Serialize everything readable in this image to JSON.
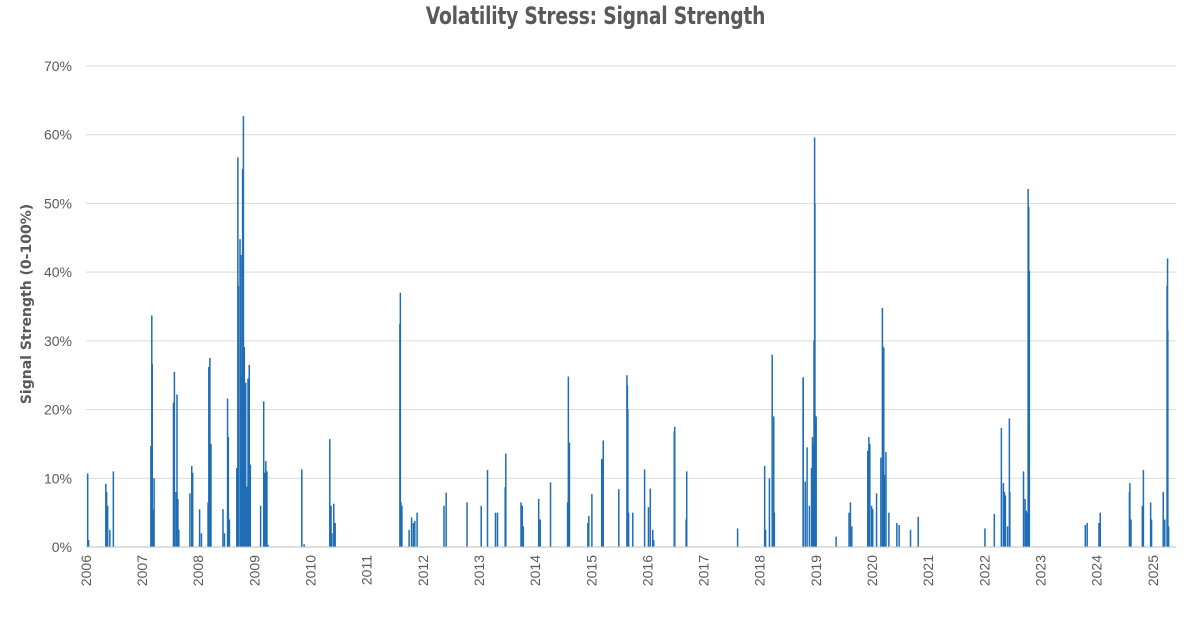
{
  "chart_data": {
    "type": "bar",
    "title": "Volatility Stress: Signal Strength",
    "ylabel": "Signal Strength (0-100%)",
    "xlabel": "",
    "ylim": [
      0,
      70
    ],
    "y_ticks": [
      "0%",
      "10%",
      "20%",
      "30%",
      "40%",
      "50%",
      "60%",
      "70%"
    ],
    "x_ticks": [
      "2006",
      "2007",
      "2008",
      "2009",
      "2010",
      "2011",
      "2012",
      "2013",
      "2014",
      "2015",
      "2016",
      "2017",
      "2018",
      "2019",
      "2020",
      "2021",
      "2022",
      "2023",
      "2024",
      "2025"
    ],
    "grid": true,
    "bar_color": "#1f6db5",
    "x_range": [
      "2006-01-01",
      "2025-06-01"
    ],
    "series": [
      {
        "points": [
          [
            "2006-01-12",
            10.7
          ],
          [
            "2006-01-18",
            1.0
          ],
          [
            "2006-05-10",
            9.2
          ],
          [
            "2006-05-15",
            8.0
          ],
          [
            "2006-05-22",
            6.0
          ],
          [
            "2006-06-05",
            2.5
          ],
          [
            "2006-06-28",
            11.0
          ],
          [
            "2007-02-27",
            14.7
          ],
          [
            "2007-03-05",
            33.7
          ],
          [
            "2007-03-08",
            26.6
          ],
          [
            "2007-03-13",
            5.4
          ],
          [
            "2007-03-20",
            10.0
          ],
          [
            "2007-07-24",
            21.0
          ],
          [
            "2007-07-30",
            25.5
          ],
          [
            "2007-08-09",
            8.0
          ],
          [
            "2007-08-16",
            22.2
          ],
          [
            "2007-08-22",
            7.0
          ],
          [
            "2007-08-28",
            2.5
          ],
          [
            "2007-11-08",
            7.8
          ],
          [
            "2007-11-20",
            11.8
          ],
          [
            "2007-11-26",
            10.8
          ],
          [
            "2008-01-10",
            5.5
          ],
          [
            "2008-01-22",
            2.0
          ],
          [
            "2008-03-05",
            6.5
          ],
          [
            "2008-03-10",
            26.2
          ],
          [
            "2008-03-17",
            27.5
          ],
          [
            "2008-03-24",
            15.0
          ],
          [
            "2008-06-10",
            5.5
          ],
          [
            "2008-06-20",
            2.0
          ],
          [
            "2008-07-10",
            21.6
          ],
          [
            "2008-07-15",
            16.0
          ],
          [
            "2008-07-22",
            4.0
          ],
          [
            "2008-09-08",
            11.5
          ],
          [
            "2008-09-15",
            56.7
          ],
          [
            "2008-09-18",
            38.0
          ],
          [
            "2008-09-29",
            44.8
          ],
          [
            "2008-10-06",
            42.5
          ],
          [
            "2008-10-10",
            25.0
          ],
          [
            "2008-10-16",
            55.0
          ],
          [
            "2008-10-21",
            62.7
          ],
          [
            "2008-10-27",
            29.1
          ],
          [
            "2008-11-05",
            23.9
          ],
          [
            "2008-11-12",
            8.8
          ],
          [
            "2008-11-20",
            24.5
          ],
          [
            "2008-11-28",
            26.5
          ],
          [
            "2008-12-05",
            12.0
          ],
          [
            "2009-02-10",
            6.0
          ],
          [
            "2009-03-02",
            21.2
          ],
          [
            "2009-03-09",
            10.8
          ],
          [
            "2009-03-16",
            12.5
          ],
          [
            "2009-03-23",
            11.0
          ],
          [
            "2009-03-30",
            0.3
          ],
          [
            "2009-11-05",
            11.3
          ],
          [
            "2009-11-20",
            0.4
          ],
          [
            "2010-05-06",
            15.7
          ],
          [
            "2010-05-14",
            6.0
          ],
          [
            "2010-05-20",
            2.0
          ],
          [
            "2010-06-01",
            6.3
          ],
          [
            "2010-06-10",
            3.5
          ],
          [
            "2011-08-05",
            32.5
          ],
          [
            "2011-08-08",
            37.0
          ],
          [
            "2011-08-12",
            6.5
          ],
          [
            "2011-08-18",
            6.0
          ],
          [
            "2011-10-04",
            2.5
          ],
          [
            "2011-10-20",
            4.3
          ],
          [
            "2011-11-01",
            3.5
          ],
          [
            "2011-11-10",
            3.8
          ],
          [
            "2011-11-25",
            5.0
          ],
          [
            "2012-05-18",
            6.0
          ],
          [
            "2012-06-01",
            7.9
          ],
          [
            "2012-10-15",
            6.5
          ],
          [
            "2013-01-15",
            6.0
          ],
          [
            "2013-02-25",
            11.2
          ],
          [
            "2013-04-18",
            5.0
          ],
          [
            "2013-05-01",
            5.0
          ],
          [
            "2013-06-20",
            8.7
          ],
          [
            "2013-06-24",
            13.6
          ],
          [
            "2013-10-01",
            6.5
          ],
          [
            "2013-10-09",
            6.0
          ],
          [
            "2013-10-16",
            3.0
          ],
          [
            "2014-01-24",
            7.0
          ],
          [
            "2014-02-03",
            4.0
          ],
          [
            "2014-04-11",
            9.4
          ],
          [
            "2014-07-31",
            6.5
          ],
          [
            "2014-08-05",
            24.8
          ],
          [
            "2014-08-12",
            15.2
          ],
          [
            "2014-12-10",
            3.5
          ],
          [
            "2014-12-16",
            4.5
          ],
          [
            "2015-01-05",
            7.7
          ],
          [
            "2015-03-10",
            12.8
          ],
          [
            "2015-03-20",
            15.5
          ],
          [
            "2015-06-29",
            8.4
          ],
          [
            "2015-08-21",
            25.0
          ],
          [
            "2015-08-24",
            23.5
          ],
          [
            "2015-08-27",
            20.0
          ],
          [
            "2015-09-01",
            5.0
          ],
          [
            "2015-09-28",
            5.0
          ],
          [
            "2015-12-14",
            11.3
          ],
          [
            "2016-01-08",
            5.8
          ],
          [
            "2016-01-20",
            8.5
          ],
          [
            "2016-02-05",
            2.5
          ],
          [
            "2016-02-11",
            1.0
          ],
          [
            "2016-06-24",
            16.8
          ],
          [
            "2016-06-27",
            17.5
          ],
          [
            "2016-09-09",
            4.0
          ],
          [
            "2016-09-13",
            11.0
          ],
          [
            "2017-08-10",
            2.7
          ],
          [
            "2018-02-02",
            11.8
          ],
          [
            "2018-02-08",
            2.5
          ],
          [
            "2018-03-05",
            10.0
          ],
          [
            "2018-03-23",
            28.0
          ],
          [
            "2018-04-02",
            19.0
          ],
          [
            "2018-04-06",
            5.0
          ],
          [
            "2018-10-10",
            24.6
          ],
          [
            "2018-10-11",
            24.7
          ],
          [
            "2018-10-24",
            9.5
          ],
          [
            "2018-11-05",
            14.5
          ],
          [
            "2018-11-20",
            6.0
          ],
          [
            "2018-12-04",
            11.5
          ],
          [
            "2018-12-10",
            16.0
          ],
          [
            "2018-12-14",
            15.0
          ],
          [
            "2018-12-20",
            30.0
          ],
          [
            "2018-12-24",
            59.6
          ],
          [
            "2018-12-26",
            50.0
          ],
          [
            "2019-01-03",
            19.0
          ],
          [
            "2019-05-13",
            1.5
          ],
          [
            "2019-08-05",
            5.0
          ],
          [
            "2019-08-14",
            6.5
          ],
          [
            "2019-08-23",
            3.0
          ],
          [
            "2019-12-05",
            14.0
          ],
          [
            "2019-12-12",
            16.0
          ],
          [
            "2019-12-18",
            15.0
          ],
          [
            "2019-12-30",
            6.0
          ],
          [
            "2020-01-06",
            5.5
          ],
          [
            "2020-01-31",
            7.8
          ],
          [
            "2020-02-28",
            13.0
          ],
          [
            "2020-03-09",
            34.8
          ],
          [
            "2020-03-12",
            29.2
          ],
          [
            "2020-03-16",
            21.0
          ],
          [
            "2020-03-18",
            29.0
          ],
          [
            "2020-03-23",
            10.5
          ],
          [
            "2020-04-01",
            13.8
          ],
          [
            "2020-04-20",
            5.0
          ],
          [
            "2020-06-11",
            3.5
          ],
          [
            "2020-06-26",
            3.2
          ],
          [
            "2020-09-08",
            2.5
          ],
          [
            "2020-10-28",
            4.4
          ],
          [
            "2022-01-05",
            2.7
          ],
          [
            "2022-03-07",
            4.8
          ],
          [
            "2022-04-22",
            17.3
          ],
          [
            "2022-05-05",
            9.3
          ],
          [
            "2022-05-12",
            8.0
          ],
          [
            "2022-05-18",
            7.5
          ],
          [
            "2022-06-01",
            3.0
          ],
          [
            "2022-06-13",
            18.7
          ],
          [
            "2022-06-16",
            8.0
          ],
          [
            "2022-09-13",
            11.0
          ],
          [
            "2022-09-23",
            7.0
          ],
          [
            "2022-09-30",
            5.3
          ],
          [
            "2022-10-07",
            5.0
          ],
          [
            "2022-10-13",
            52.1
          ],
          [
            "2022-10-17",
            49.5
          ],
          [
            "2022-10-21",
            40.2
          ],
          [
            "2023-10-20",
            3.2
          ],
          [
            "2023-11-01",
            3.5
          ],
          [
            "2024-01-17",
            3.5
          ],
          [
            "2024-01-25",
            5.0
          ],
          [
            "2024-08-02",
            8.0
          ],
          [
            "2024-08-05",
            9.3
          ],
          [
            "2024-08-12",
            4.0
          ],
          [
            "2024-10-25",
            6.0
          ],
          [
            "2024-11-01",
            11.2
          ],
          [
            "2024-12-18",
            6.5
          ],
          [
            "2024-12-24",
            4.0
          ],
          [
            "2025-03-10",
            8.0
          ],
          [
            "2025-03-20",
            4.0
          ],
          [
            "2025-04-04",
            38.0
          ],
          [
            "2025-04-07",
            42.0
          ],
          [
            "2025-04-09",
            31.5
          ],
          [
            "2025-04-14",
            3.0
          ]
        ]
      }
    ]
  }
}
